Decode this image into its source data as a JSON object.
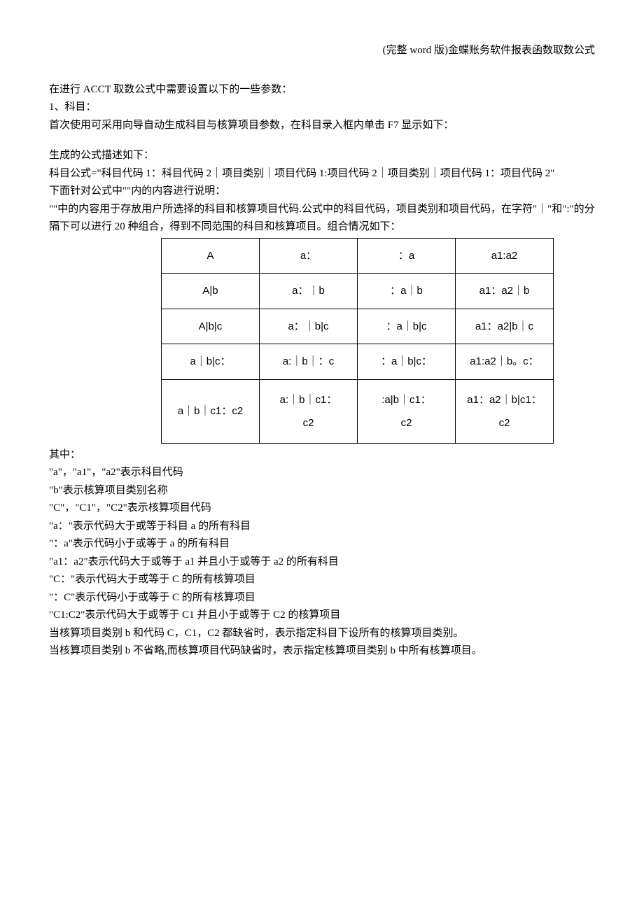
{
  "header": {
    "title": "(完整 word 版)金蝶账务软件报表函数取数公式"
  },
  "para1": "在进行 ACCT 取数公式中需要设置以下的一些参数：",
  "para2": "1、科目：",
  "para3": "首次使用可采用向导自动生成科目与核算项目参数，在科目录入框内单击 F7 显示如下：",
  "para4": "生成的公式描述如下：",
  "para5": "科目公式=\"科目代码 1：科目代码 2｜项目类别｜项目代码 1:项目代码 2｜项目类别｜项目代码 1：项目代码 2\"",
  "para6": "下面针对公式中\"\"内的内容进行说明：",
  "para7": "\"\"中的内容用于存放用户所选择的科目和核算项目代码.公式中的科目代码，项目类别和项目代码，在字符\"｜\"和\":\"的分隔下可以进行 20 种组合，得到不同范围的科目和核算项目。组合情况如下：",
  "table": {
    "rows": [
      [
        "A",
        "a：",
        "：a",
        "a1:a2"
      ],
      [
        "A|b",
        "a：｜b",
        "：a｜b",
        "a1：a2｜b"
      ],
      [
        "A|b|c",
        "a：｜b|c",
        "：a｜b|c",
        "a1：a2|b｜c"
      ],
      [
        "a｜b|c：",
        "a:｜b｜：c",
        "：a｜b|c：",
        "a1:a2｜b。c："
      ],
      [
        "a｜b｜c1：c2",
        "a:｜b｜c1：\nc2",
        ":a|b｜c1：\nc2",
        "a1：a2｜b|c1：\nc2"
      ]
    ]
  },
  "para8": "其中：",
  "para9": "\"a\"，\"a1\"，\"a2\"表示科目代码",
  "para10": "\"b\"表示核算项目类别名称",
  "para11": "\"C\"，\"C1\"，\"C2\"表示核算项目代码",
  "para12": "\"a：\"表示代码大于或等于科目 a 的所有科目",
  "para13": "\"：a\"表示代码小于或等于 a 的所有科目",
  "para14": "\"a1：a2\"表示代码大于或等于 a1 并且小于或等于 a2 的所有科目",
  "para15": "\"C：\"表示代码大于或等于 C 的所有核算项目",
  "para16": "\"：C\"表示代码小于或等于 C 的所有核算项目",
  "para17": "\"C1:C2\"表示代码大于或等于 C1 并且小于或等于 C2 的核算项目",
  "para18": "当核算项目类别 b 和代码 C，C1，C2 都缺省时，表示指定科目下设所有的核算项目类别。",
  "para19": "当核算项目类别 b 不省略,而核算项目代码缺省时，表示指定核算项目类别 b 中所有核算项目。"
}
